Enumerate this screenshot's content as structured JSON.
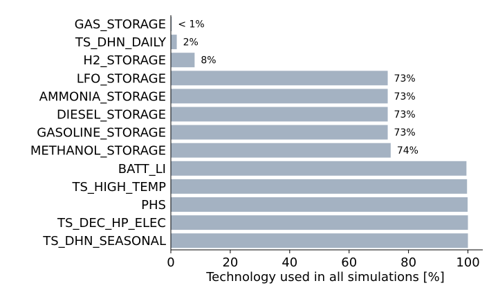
{
  "chart_data": {
    "type": "bar",
    "orientation": "horizontal",
    "categories": [
      "GAS_STORAGE",
      "TS_DHN_DAILY",
      "H2_STORAGE",
      "LFO_STORAGE",
      "AMMONIA_STORAGE",
      "DIESEL_STORAGE",
      "GASOLINE_STORAGE",
      "METHANOL_STORAGE",
      "BATT_LI",
      "TS_HIGH_TEMP",
      "PHS",
      "TS_DEC_HP_ELEC",
      "TS_DHN_SEASONAL"
    ],
    "values": [
      0.3,
      2,
      8,
      73,
      73,
      73,
      73,
      74,
      99.5,
      99.7,
      99.9,
      100,
      100
    ],
    "data_labels": [
      "< 1%",
      "2%",
      "8%",
      "73%",
      "73%",
      "73%",
      "73%",
      "74%",
      "",
      "",
      "",
      "",
      ""
    ],
    "xlabel": "Technology used in all simulations [%]",
    "ylabel": "",
    "xlim": [
      0,
      105
    ],
    "xticks": [
      0,
      20,
      40,
      60,
      80,
      100
    ],
    "bar_color": "#a4b2c2",
    "grid": false,
    "legend": "none"
  }
}
